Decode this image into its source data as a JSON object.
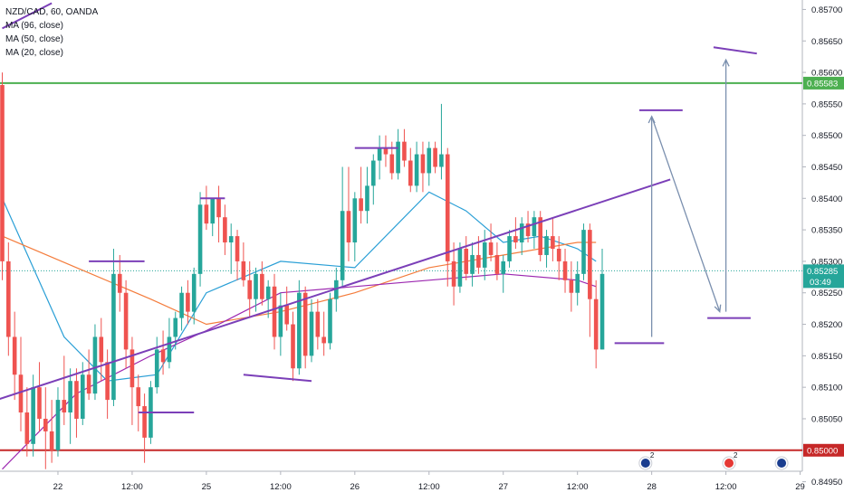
{
  "chart_data": {
    "type": "candlestick",
    "symbol": "NZD/CAD, 60, OANDA",
    "indicators": [
      "MA (96, close)",
      "MA (50, close)",
      "MA (20, close)"
    ],
    "ylim": [
      0.84925,
      0.85715
    ],
    "y_ticks": [
      "0.85700",
      "0.85650",
      "0.85600",
      "0.85550",
      "0.85500",
      "0.85450",
      "0.85400",
      "0.85350",
      "0.85300",
      "0.85250",
      "0.85200",
      "0.85150",
      "0.85100",
      "0.85050",
      "0.85000",
      "0.84950"
    ],
    "x_ticks": [
      {
        "label": "22",
        "i": 9
      },
      {
        "label": "12:00",
        "i": 21
      },
      {
        "label": "25",
        "i": 33
      },
      {
        "label": "12:00",
        "i": 45
      },
      {
        "label": "26",
        "i": 57
      },
      {
        "label": "12:00",
        "i": 69
      },
      {
        "label": "27",
        "i": 81
      },
      {
        "label": "12:00",
        "i": 93
      },
      {
        "label": "28",
        "i": 105
      },
      {
        "label": "12:00",
        "i": 117
      },
      {
        "label": "29",
        "i": 129
      }
    ],
    "candles": [
      [
        0.8558,
        0.856,
        0.8527,
        0.853
      ],
      [
        0.853,
        0.8533,
        0.8515,
        0.8518
      ],
      [
        0.8518,
        0.8522,
        0.8508,
        0.8512
      ],
      [
        0.8512,
        0.8518,
        0.8503,
        0.8506
      ],
      [
        0.8506,
        0.851,
        0.8499,
        0.8501
      ],
      [
        0.8501,
        0.8512,
        0.8499,
        0.851
      ],
      [
        0.851,
        0.8514,
        0.8503,
        0.8505
      ],
      [
        0.8505,
        0.851,
        0.8497,
        0.8503
      ],
      [
        0.8503,
        0.8508,
        0.8498,
        0.85
      ],
      [
        0.85,
        0.851,
        0.8499,
        0.8508
      ],
      [
        0.8508,
        0.8515,
        0.8504,
        0.8506
      ],
      [
        0.8506,
        0.8513,
        0.8501,
        0.8511
      ],
      [
        0.8511,
        0.8513,
        0.8502,
        0.8505
      ],
      [
        0.8505,
        0.8514,
        0.8504,
        0.8512
      ],
      [
        0.8512,
        0.8516,
        0.8508,
        0.8509
      ],
      [
        0.8509,
        0.852,
        0.8508,
        0.8518
      ],
      [
        0.8518,
        0.8521,
        0.8511,
        0.8514
      ],
      [
        0.8514,
        0.8516,
        0.8505,
        0.8508
      ],
      [
        0.8508,
        0.8532,
        0.8507,
        0.8528
      ],
      [
        0.8528,
        0.8531,
        0.8522,
        0.8525
      ],
      [
        0.8525,
        0.8527,
        0.8513,
        0.8516
      ],
      [
        0.8516,
        0.8518,
        0.8504,
        0.851
      ],
      [
        0.851,
        0.8512,
        0.8503,
        0.8507
      ],
      [
        0.8507,
        0.8509,
        0.8498,
        0.8502
      ],
      [
        0.8502,
        0.8511,
        0.8501,
        0.851
      ],
      [
        0.851,
        0.8518,
        0.8509,
        0.8516
      ],
      [
        0.8516,
        0.8519,
        0.8512,
        0.8514
      ],
      [
        0.8514,
        0.8521,
        0.8513,
        0.8518
      ],
      [
        0.8518,
        0.8522,
        0.8516,
        0.8521
      ],
      [
        0.8521,
        0.8526,
        0.8519,
        0.8525
      ],
      [
        0.8525,
        0.8527,
        0.852,
        0.8522
      ],
      [
        0.8522,
        0.8529,
        0.852,
        0.8528
      ],
      [
        0.8528,
        0.8541,
        0.8526,
        0.8539
      ],
      [
        0.8539,
        0.8542,
        0.8535,
        0.8536
      ],
      [
        0.8536,
        0.854,
        0.8534,
        0.854
      ],
      [
        0.854,
        0.8542,
        0.8533,
        0.8537
      ],
      [
        0.8537,
        0.8539,
        0.8531,
        0.8533
      ],
      [
        0.8533,
        0.8536,
        0.8528,
        0.8534
      ],
      [
        0.8534,
        0.8535,
        0.8527,
        0.853
      ],
      [
        0.853,
        0.8533,
        0.8526,
        0.8527
      ],
      [
        0.8527,
        0.853,
        0.8521,
        0.8524
      ],
      [
        0.8524,
        0.8529,
        0.8522,
        0.8528
      ],
      [
        0.8528,
        0.853,
        0.8523,
        0.8524
      ],
      [
        0.8524,
        0.8527,
        0.8521,
        0.8526
      ],
      [
        0.8526,
        0.8528,
        0.8516,
        0.8518
      ],
      [
        0.8518,
        0.8525,
        0.8515,
        0.8523
      ],
      [
        0.8523,
        0.8526,
        0.8519,
        0.852
      ],
      [
        0.852,
        0.8522,
        0.8511,
        0.8513
      ],
      [
        0.8513,
        0.8527,
        0.8512,
        0.8525
      ],
      [
        0.8525,
        0.8526,
        0.8513,
        0.8515
      ],
      [
        0.8515,
        0.8524,
        0.8514,
        0.8522
      ],
      [
        0.8522,
        0.8524,
        0.8516,
        0.8518
      ],
      [
        0.8518,
        0.8522,
        0.8515,
        0.8517
      ],
      [
        0.8517,
        0.8525,
        0.8516,
        0.8524
      ],
      [
        0.8524,
        0.8529,
        0.8522,
        0.8527
      ],
      [
        0.8527,
        0.8545,
        0.8526,
        0.8538
      ],
      [
        0.8538,
        0.8545,
        0.853,
        0.8533
      ],
      [
        0.8533,
        0.8541,
        0.853,
        0.854
      ],
      [
        0.854,
        0.8545,
        0.8536,
        0.8538
      ],
      [
        0.8538,
        0.8545,
        0.8536,
        0.8542
      ],
      [
        0.8542,
        0.8547,
        0.8539,
        0.8546
      ],
      [
        0.8546,
        0.855,
        0.8543,
        0.8548
      ],
      [
        0.8548,
        0.855,
        0.8545,
        0.8547
      ],
      [
        0.8547,
        0.8549,
        0.8543,
        0.8544
      ],
      [
        0.8544,
        0.8551,
        0.8543,
        0.8549
      ],
      [
        0.8549,
        0.8551,
        0.8545,
        0.8546
      ],
      [
        0.8546,
        0.8548,
        0.8541,
        0.8542
      ],
      [
        0.8542,
        0.8549,
        0.8541,
        0.8547
      ],
      [
        0.8547,
        0.8549,
        0.8541,
        0.8544
      ],
      [
        0.8544,
        0.8549,
        0.8542,
        0.8548
      ],
      [
        0.8548,
        0.8549,
        0.8544,
        0.8545
      ],
      [
        0.8545,
        0.8555,
        0.8543,
        0.8547
      ],
      [
        0.8547,
        0.8548,
        0.8526,
        0.853
      ],
      [
        0.853,
        0.8533,
        0.8523,
        0.8526
      ],
      [
        0.8526,
        0.8533,
        0.8525,
        0.8532
      ],
      [
        0.8532,
        0.8534,
        0.8527,
        0.8528
      ],
      [
        0.8528,
        0.8533,
        0.8526,
        0.8531
      ],
      [
        0.8531,
        0.8534,
        0.8528,
        0.8529
      ],
      [
        0.8529,
        0.8535,
        0.8527,
        0.8533
      ],
      [
        0.8533,
        0.8536,
        0.853,
        0.8531
      ],
      [
        0.8531,
        0.8533,
        0.8527,
        0.8528
      ],
      [
        0.8528,
        0.8531,
        0.8525,
        0.853
      ],
      [
        0.853,
        0.8535,
        0.8529,
        0.8534
      ],
      [
        0.8534,
        0.8537,
        0.8532,
        0.8533
      ],
      [
        0.8533,
        0.8537,
        0.8531,
        0.8536
      ],
      [
        0.8536,
        0.8538,
        0.8533,
        0.8534
      ],
      [
        0.8534,
        0.8538,
        0.8532,
        0.8537
      ],
      [
        0.8537,
        0.8538,
        0.853,
        0.8531
      ],
      [
        0.8531,
        0.8535,
        0.8529,
        0.8534
      ],
      [
        0.8534,
        0.8537,
        0.853,
        0.8532
      ],
      [
        0.8532,
        0.8534,
        0.8527,
        0.853
      ],
      [
        0.853,
        0.8532,
        0.8525,
        0.8527
      ],
      [
        0.8527,
        0.853,
        0.8522,
        0.8525
      ],
      [
        0.8525,
        0.853,
        0.8523,
        0.8528
      ],
      [
        0.8528,
        0.8536,
        0.8527,
        0.8535
      ],
      [
        0.8535,
        0.8536,
        0.8518,
        0.8524
      ],
      [
        0.8524,
        0.8527,
        0.8513,
        0.8516
      ],
      [
        0.8516,
        0.8532,
        0.8516,
        0.8528
      ]
    ],
    "moving_averages": [
      {
        "name": "MA (20, close)",
        "color": "#2a9fd6",
        "values": [
          [
            0,
            0.854
          ],
          [
            10,
            0.8518
          ],
          [
            17,
            0.8511
          ],
          [
            25,
            0.8512
          ],
          [
            33,
            0.8525
          ],
          [
            45,
            0.853
          ],
          [
            57,
            0.8529
          ],
          [
            69,
            0.8541
          ],
          [
            75,
            0.8538
          ],
          [
            81,
            0.8533
          ],
          [
            87,
            0.8534
          ],
          [
            93,
            0.8532
          ],
          [
            96,
            0.853
          ]
        ]
      },
      {
        "name": "MA (50, close)",
        "color": "#f47c3c",
        "values": [
          [
            0,
            0.8534
          ],
          [
            12,
            0.8529
          ],
          [
            24,
            0.8524
          ],
          [
            33,
            0.852
          ],
          [
            45,
            0.8522
          ],
          [
            57,
            0.8525
          ],
          [
            69,
            0.8529
          ],
          [
            81,
            0.8531
          ],
          [
            93,
            0.8533
          ],
          [
            96,
            0.8533
          ]
        ]
      },
      {
        "name": "MA (96, close)",
        "color": "#9c27b0",
        "values": [
          [
            0,
            0.8497
          ],
          [
            12,
            0.8509
          ],
          [
            24,
            0.8515
          ],
          [
            33,
            0.8519
          ],
          [
            45,
            0.8525
          ],
          [
            57,
            0.8526
          ],
          [
            69,
            0.8527
          ],
          [
            81,
            0.8528
          ],
          [
            93,
            0.8527
          ],
          [
            96,
            0.8526
          ]
        ]
      }
    ],
    "levels": [
      {
        "price": 0.85583,
        "label": "0.85583",
        "color": "#4caf50"
      },
      {
        "price": 0.85,
        "label": "0.85000",
        "color": "#c62828"
      }
    ],
    "last_price": {
      "label": "0.85285",
      "price": 0.85285,
      "countdown": "03:49",
      "color": "#26a69a"
    },
    "drawings": {
      "trendline": [
        [
          -60,
          0.8489
        ],
        [
          108,
          0.8543
        ]
      ],
      "top_left_trendline": [
        [
          0,
          0.8567
        ],
        [
          8,
          0.8571
        ]
      ],
      "hlines": [
        [
          [
            14,
            0.853
          ],
          [
            23,
            0.853
          ]
        ],
        [
          [
            22,
            0.8506
          ],
          [
            31,
            0.8506
          ]
        ],
        [
          [
            32,
            0.854
          ],
          [
            36,
            0.854
          ]
        ],
        [
          [
            39,
            0.8512
          ],
          [
            50,
            0.8511
          ]
        ],
        [
          [
            57,
            0.8548
          ],
          [
            64,
            0.8548
          ]
        ],
        [
          [
            99,
            0.8517
          ],
          [
            107,
            0.8517
          ]
        ],
        [
          [
            103,
            0.8554
          ],
          [
            110,
            0.8554
          ]
        ],
        [
          [
            114,
            0.8521
          ],
          [
            121,
            0.8521
          ]
        ],
        [
          [
            115,
            0.8564
          ],
          [
            122,
            0.8563
          ]
        ]
      ],
      "arrows": [
        [
          [
            105,
            0.8518
          ],
          [
            105,
            0.8553
          ]
        ],
        [
          [
            105,
            0.8553
          ],
          [
            116,
            0.8522
          ]
        ],
        [
          [
            117,
            0.8522
          ],
          [
            117,
            0.8562
          ]
        ]
      ]
    },
    "events": [
      "NZ flag event 2",
      "CA flag event 2",
      "NZ flag event"
    ]
  },
  "colors": {
    "up": "#26a69a",
    "down": "#ef5350",
    "drawing": "#7b3fb8",
    "arrow": "#7a8fae",
    "axis_text": "#131722"
  }
}
